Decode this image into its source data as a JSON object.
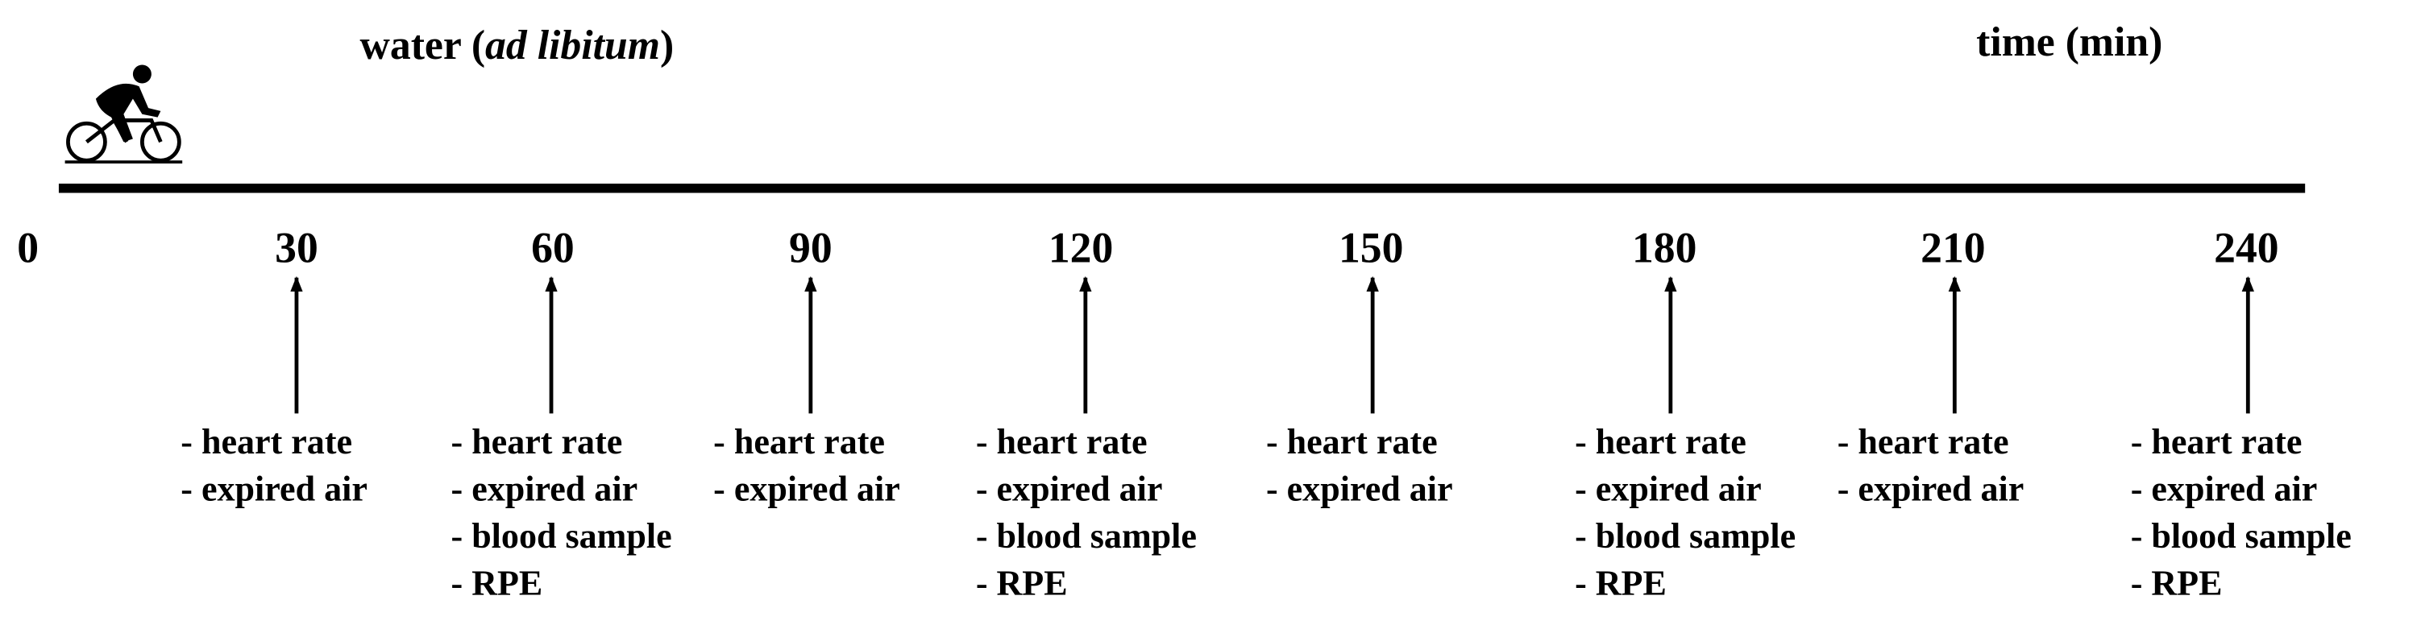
{
  "header": {
    "water_prefix": "water (",
    "water_italic": "ad libitum",
    "water_suffix": ")",
    "time_label": "time (min)"
  },
  "timeline": {
    "ticks": [
      0,
      30,
      60,
      90,
      120,
      150,
      180,
      210,
      240
    ]
  },
  "measurements": [
    {
      "time": 30,
      "items": [
        "- heart rate",
        "- expired air"
      ]
    },
    {
      "time": 60,
      "items": [
        "- heart rate",
        "- expired air",
        "- blood sample",
        "- RPE"
      ]
    },
    {
      "time": 90,
      "items": [
        "- heart rate",
        "- expired air"
      ]
    },
    {
      "time": 120,
      "items": [
        "- heart rate",
        "- expired air",
        "- blood sample",
        "- RPE"
      ]
    },
    {
      "time": 150,
      "items": [
        "- heart rate",
        "- expired air"
      ]
    },
    {
      "time": 180,
      "items": [
        "- heart rate",
        "- expired air",
        "- blood sample",
        "- RPE"
      ]
    },
    {
      "time": 210,
      "items": [
        "- heart rate",
        "- expired air"
      ]
    },
    {
      "time": 240,
      "items": [
        "- heart rate",
        "- expired air",
        "- blood sample",
        "- RPE"
      ]
    }
  ]
}
